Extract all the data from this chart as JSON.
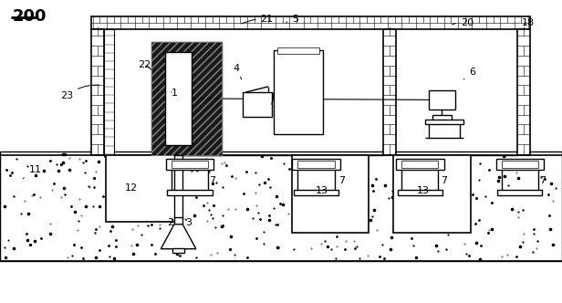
{
  "bg_color": "#ffffff",
  "lc": "#000000",
  "concrete_dots_small": 300,
  "concrete_dots_large": 60,
  "seed": 42
}
